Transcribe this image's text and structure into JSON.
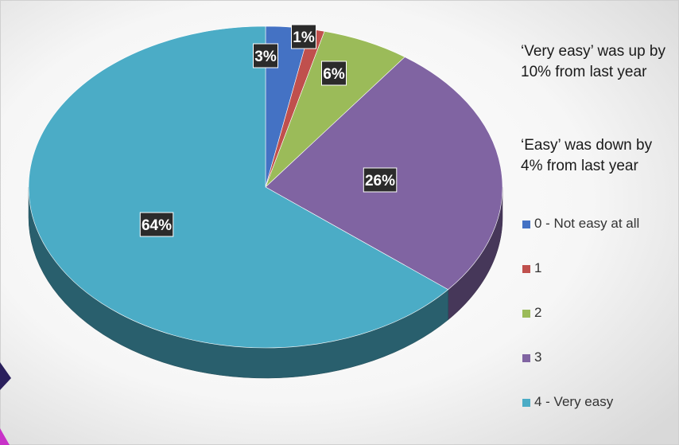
{
  "chart_data": {
    "type": "pie",
    "title": "",
    "categories": [
      "0 - Not easy at all",
      "1",
      "2",
      "3",
      "4 - Very easy"
    ],
    "values": [
      3,
      1,
      6,
      26,
      64
    ],
    "unit": "%",
    "data_labels": [
      "3%",
      "1%",
      "6%",
      "26%",
      "64%"
    ],
    "colors": [
      "#4472c4",
      "#c0504d",
      "#9bbb59",
      "#8064a2",
      "#4bacc6"
    ],
    "style": "3d",
    "legend_position": "right",
    "annotations": [
      "‘Very easy’ was up by 10% from last year",
      "‘Easy’ was down by 4% from last year"
    ]
  }
}
